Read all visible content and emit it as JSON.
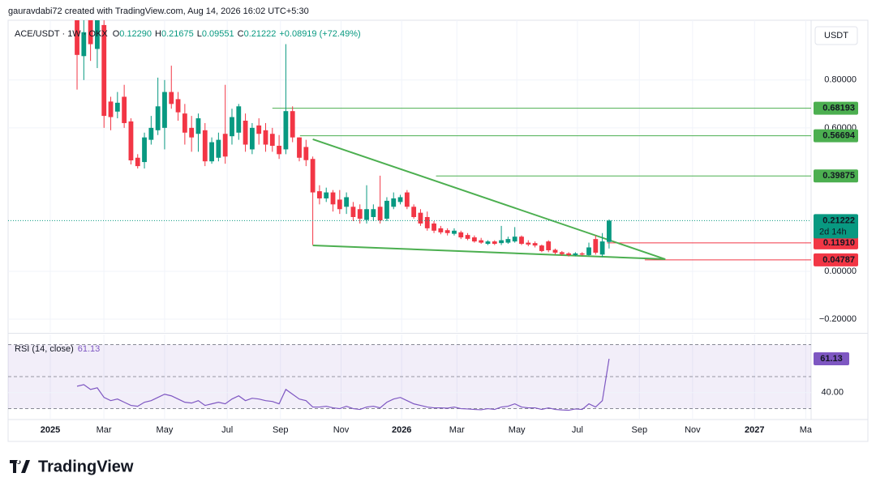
{
  "header": {
    "attribution": "gauravdabi72 created with TradingView.com, Aug 14, 2026 16:02 UTC+5:30",
    "symbol": "ACE/USDT · 1W · OKX",
    "ohlc": [
      {
        "key": "O",
        "value": "0.12290"
      },
      {
        "key": "H",
        "value": "0.21675"
      },
      {
        "key": "L",
        "value": "0.09551"
      },
      {
        "key": "C",
        "value": "0.21222"
      }
    ],
    "change": "+0.08919 (+72.49%)"
  },
  "chart_data": {
    "type": "candlestick",
    "currency": "USDT",
    "up_color": "#089981",
    "down_color": "#f23645",
    "xlim": [
      -10.24,
      109
    ],
    "ylim": [
      -0.254,
      1.05
    ],
    "xticks": [
      {
        "value": -3.98,
        "label": "2025"
      },
      {
        "value": 3.98,
        "label": "Mar"
      },
      {
        "value": 13,
        "label": "May"
      },
      {
        "value": 22.3,
        "label": "Jul"
      },
      {
        "value": 30.2,
        "label": "Sep"
      },
      {
        "value": 39.2,
        "label": "Nov"
      },
      {
        "value": 48.2,
        "label": "2026"
      },
      {
        "value": 56.4,
        "label": "Mar"
      },
      {
        "value": 65.3,
        "label": "May"
      },
      {
        "value": 74.3,
        "label": "Jul"
      },
      {
        "value": 83.5,
        "label": "Sep"
      },
      {
        "value": 91.4,
        "label": "Nov"
      },
      {
        "value": 100.6,
        "label": "2027"
      },
      {
        "value": 108.2,
        "label": "Ma"
      }
    ],
    "yticks": [
      {
        "value": 0.8,
        "label": "0.80000"
      },
      {
        "value": 0.6,
        "label": "0.60000"
      },
      {
        "value": 0,
        "label": "0.00000"
      },
      {
        "value": -0.2,
        "label": "−0.20000"
      }
    ],
    "ohlc": [
      [
        1.15,
        1.3,
        0.76,
        0.905
      ],
      [
        0.9,
        1.2,
        0.8,
        1.0
      ],
      [
        1.1,
        1.2,
        0.88,
        0.95
      ],
      [
        0.93,
        1.2,
        0.85,
        1.05
      ],
      [
        1.03,
        1.1,
        0.6,
        0.65
      ],
      [
        0.71,
        0.73,
        0.59,
        0.645
      ],
      [
        0.668,
        0.75,
        0.64,
        0.705
      ],
      [
        0.73,
        0.78,
        0.6,
        0.62
      ],
      [
        0.627,
        0.64,
        0.447,
        0.464
      ],
      [
        0.475,
        0.49,
        0.43,
        0.44
      ],
      [
        0.457,
        0.58,
        0.43,
        0.56
      ],
      [
        0.55,
        0.65,
        0.53,
        0.6
      ],
      [
        0.59,
        0.81,
        0.57,
        0.69
      ],
      [
        0.6,
        0.8,
        0.51,
        0.75
      ],
      [
        0.75,
        0.86,
        0.68,
        0.7
      ],
      [
        0.72,
        0.75,
        0.63,
        0.665
      ],
      [
        0.66,
        0.7,
        0.53,
        0.58
      ],
      [
        0.6,
        0.65,
        0.5,
        0.56
      ],
      [
        0.575,
        0.66,
        0.5,
        0.64
      ],
      [
        0.59,
        0.62,
        0.44,
        0.46
      ],
      [
        0.46,
        0.56,
        0.45,
        0.54
      ],
      [
        0.475,
        0.58,
        0.46,
        0.55
      ],
      [
        0.575,
        0.78,
        0.45,
        0.48
      ],
      [
        0.565,
        0.68,
        0.53,
        0.645
      ],
      [
        0.58,
        0.7,
        0.55,
        0.69
      ],
      [
        0.63,
        0.66,
        0.5,
        0.53
      ],
      [
        0.51,
        0.62,
        0.49,
        0.6
      ],
      [
        0.61,
        0.64,
        0.53,
        0.575
      ],
      [
        0.59,
        0.62,
        0.5,
        0.53
      ],
      [
        0.575,
        0.6,
        0.5,
        0.525
      ],
      [
        0.525,
        0.57,
        0.47,
        0.49
      ],
      [
        0.51,
        0.95,
        0.49,
        0.67
      ],
      [
        0.67,
        0.69,
        0.54,
        0.56
      ],
      [
        0.56,
        0.56,
        0.46,
        0.475
      ],
      [
        0.52,
        0.55,
        0.44,
        0.465
      ],
      [
        0.47,
        0.48,
        0.11,
        0.33
      ],
      [
        0.335,
        0.36,
        0.28,
        0.305
      ],
      [
        0.305,
        0.35,
        0.29,
        0.33
      ],
      [
        0.33,
        0.34,
        0.25,
        0.28
      ],
      [
        0.3,
        0.34,
        0.24,
        0.26
      ],
      [
        0.27,
        0.33,
        0.24,
        0.31
      ],
      [
        0.27,
        0.29,
        0.21,
        0.227
      ],
      [
        0.26,
        0.28,
        0.2,
        0.22
      ],
      [
        0.215,
        0.36,
        0.2,
        0.26
      ],
      [
        0.227,
        0.28,
        0.21,
        0.26
      ],
      [
        0.27,
        0.4,
        0.2,
        0.213
      ],
      [
        0.22,
        0.31,
        0.21,
        0.295
      ],
      [
        0.27,
        0.33,
        0.26,
        0.305
      ],
      [
        0.29,
        0.32,
        0.28,
        0.31
      ],
      [
        0.33,
        0.34,
        0.26,
        0.27
      ],
      [
        0.27,
        0.28,
        0.22,
        0.227
      ],
      [
        0.245,
        0.26,
        0.19,
        0.2
      ],
      [
        0.227,
        0.25,
        0.17,
        0.18
      ],
      [
        0.2,
        0.21,
        0.16,
        0.17
      ],
      [
        0.18,
        0.19,
        0.155,
        0.163
      ],
      [
        0.172,
        0.18,
        0.15,
        0.16
      ],
      [
        0.157,
        0.18,
        0.15,
        0.17
      ],
      [
        0.163,
        0.17,
        0.135,
        0.142
      ],
      [
        0.152,
        0.16,
        0.13,
        0.136
      ],
      [
        0.142,
        0.15,
        0.12,
        0.125
      ],
      [
        0.13,
        0.14,
        0.115,
        0.12
      ],
      [
        0.115,
        0.13,
        0.11,
        0.125
      ],
      [
        0.125,
        0.13,
        0.11,
        0.115
      ],
      [
        0.118,
        0.19,
        0.11,
        0.13
      ],
      [
        0.12,
        0.145,
        0.115,
        0.135
      ],
      [
        0.125,
        0.185,
        0.12,
        0.145
      ],
      [
        0.145,
        0.15,
        0.11,
        0.115
      ],
      [
        0.12,
        0.13,
        0.105,
        0.112
      ],
      [
        0.118,
        0.125,
        0.1,
        0.108
      ],
      [
        0.108,
        0.112,
        0.08,
        0.085
      ],
      [
        0.125,
        0.13,
        0.08,
        0.088
      ],
      [
        0.09,
        0.095,
        0.07,
        0.078
      ],
      [
        0.08,
        0.085,
        0.065,
        0.072
      ],
      [
        0.075,
        0.08,
        0.062,
        0.068
      ],
      [
        0.068,
        0.08,
        0.063,
        0.075
      ],
      [
        0.075,
        0.08,
        0.065,
        0.07
      ],
      [
        0.068,
        0.12,
        0.065,
        0.1
      ],
      [
        0.135,
        0.15,
        0.07,
        0.078
      ],
      [
        0.07,
        0.16,
        0.06,
        0.125
      ],
      [
        0.1229,
        0.21675,
        0.09551,
        0.21222
      ]
    ],
    "levels": [
      {
        "value": 0.68193,
        "from": 29,
        "color": "#4caf50"
      },
      {
        "value": 0.56694,
        "from": 33.1,
        "color": "#4caf50"
      },
      {
        "value": 0.39875,
        "from": 53.3,
        "color": "#4caf50"
      },
      {
        "value": 0.1191,
        "label": "0.11910",
        "from": 78.7,
        "color": "#f23645"
      },
      {
        "value": 0.04787,
        "from": 84.3,
        "color": "#f23645"
      }
    ],
    "last_price": 0.21222,
    "countdown": "2d 14h",
    "trendlines": [
      {
        "points": [
          [
            35,
            0.5525
          ],
          [
            87.35,
            0.0508
          ]
        ],
        "color": "#4caf50"
      },
      {
        "points": [
          [
            35,
            0.1085
          ],
          [
            87.35,
            0.0508
          ]
        ],
        "color": "#4caf50"
      }
    ],
    "rsi": {
      "title": "RSI (14, close)",
      "color": "#7e57c2",
      "last": 61.13,
      "ylim": [
        23.2,
        76.3
      ],
      "yticks": [
        {
          "value": 40,
          "label": "40.00"
        }
      ],
      "bands": [
        70,
        50,
        30
      ],
      "values": [
        44,
        45,
        42,
        43,
        37,
        35,
        36,
        34,
        32,
        31.5,
        34,
        35,
        37,
        39,
        38,
        36,
        34,
        33.5,
        35,
        32,
        33,
        34,
        33,
        36,
        38,
        35,
        36.5,
        36,
        35,
        34.5,
        33,
        42,
        39,
        36,
        35,
        31,
        31,
        31.5,
        30.5,
        30,
        31.5,
        30,
        29.5,
        31,
        31.5,
        30.5,
        34,
        36,
        37,
        35,
        33,
        32,
        31,
        30.5,
        30.5,
        30.3,
        31,
        30,
        29.8,
        29.5,
        29.3,
        30,
        29.5,
        31,
        31.5,
        33,
        31,
        30.5,
        30.5,
        29.5,
        30.5,
        29.5,
        29.2,
        29,
        29.8,
        29.5,
        33,
        31,
        35,
        61.13
      ]
    }
  },
  "footer": {
    "brand": "TradingView"
  }
}
